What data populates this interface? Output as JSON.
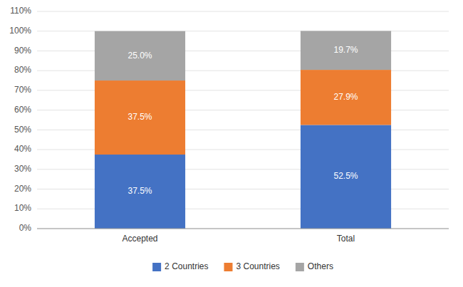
{
  "chart_data": {
    "type": "bar",
    "stacked": true,
    "data_labels": true,
    "grid": true,
    "legend": "bottom",
    "categories": [
      "Accepted",
      "Total"
    ],
    "series": [
      {
        "name": "2 Countries",
        "color": "#4472C4",
        "values": [
          37.5,
          52.5
        ],
        "value_labels": [
          "37.5%",
          "52.5%"
        ]
      },
      {
        "name": "3 Countries",
        "color": "#ED7D31",
        "values": [
          37.5,
          27.9
        ],
        "value_labels": [
          "37.5%",
          "27.9%"
        ]
      },
      {
        "name": "Others",
        "color": "#A5A5A5",
        "values": [
          25.0,
          19.7
        ],
        "value_labels": [
          "25.0%",
          "19.7%"
        ]
      }
    ],
    "ylim": [
      0,
      110
    ],
    "yticks": [
      {
        "value": 0,
        "label": "0%"
      },
      {
        "value": 10,
        "label": "10%"
      },
      {
        "value": 20,
        "label": "20%"
      },
      {
        "value": 30,
        "label": "30%"
      },
      {
        "value": 40,
        "label": "40%"
      },
      {
        "value": 50,
        "label": "50%"
      },
      {
        "value": 60,
        "label": "60%"
      },
      {
        "value": 70,
        "label": "70%"
      },
      {
        "value": 80,
        "label": "80%"
      },
      {
        "value": 90,
        "label": "90%"
      },
      {
        "value": 100,
        "label": "100%"
      },
      {
        "value": 110,
        "label": "110%"
      }
    ]
  }
}
